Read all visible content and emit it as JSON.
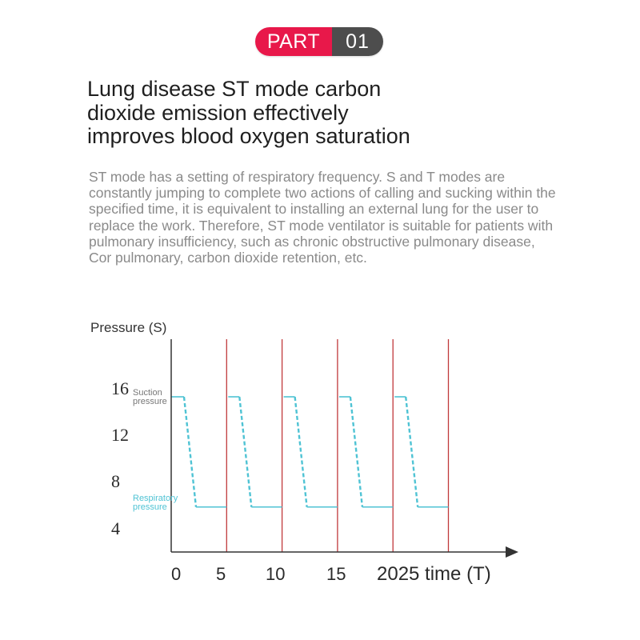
{
  "badge": {
    "part_label": "PART",
    "number": "01"
  },
  "headline": {
    "lines": [
      "Lung disease ST mode carbon",
      "dioxide emission effectively",
      "improves blood oxygen saturation"
    ]
  },
  "description": {
    "lines": [
      "ST mode has a setting of respiratory frequency. S and T modes are",
      "constantly jumping to complete two actions of calling and sucking within the",
      "specified time, it is equivalent to installing an external lung for the user to",
      "replace the work. Therefore, ST mode ventilator is suitable for patients with",
      "pulmonary insufficiency, such as chronic obstructive pulmonary disease,",
      "Cor pulmonary, carbon dioxide retention, etc."
    ]
  },
  "chart_data": {
    "type": "line",
    "ylabel": "Pressure (S)",
    "xlabel": "2025 time (T)",
    "y_ticks": [
      "16",
      "12",
      "8",
      "4"
    ],
    "x_ticks": [
      "0",
      "5",
      "10",
      "15"
    ],
    "annotations": {
      "suction": [
        "Suction",
        "pressure"
      ],
      "respiratory": [
        "Respiratory",
        "pressure"
      ]
    },
    "cycles": 5,
    "high_pressure": 16,
    "low_pressure": 6.5,
    "colors": {
      "wave": "#4fc3d4",
      "cycle_line": "#c0393b",
      "axis": "#333333",
      "suction_note": "#777777",
      "respiratory_note": "#4fc3d4"
    }
  }
}
